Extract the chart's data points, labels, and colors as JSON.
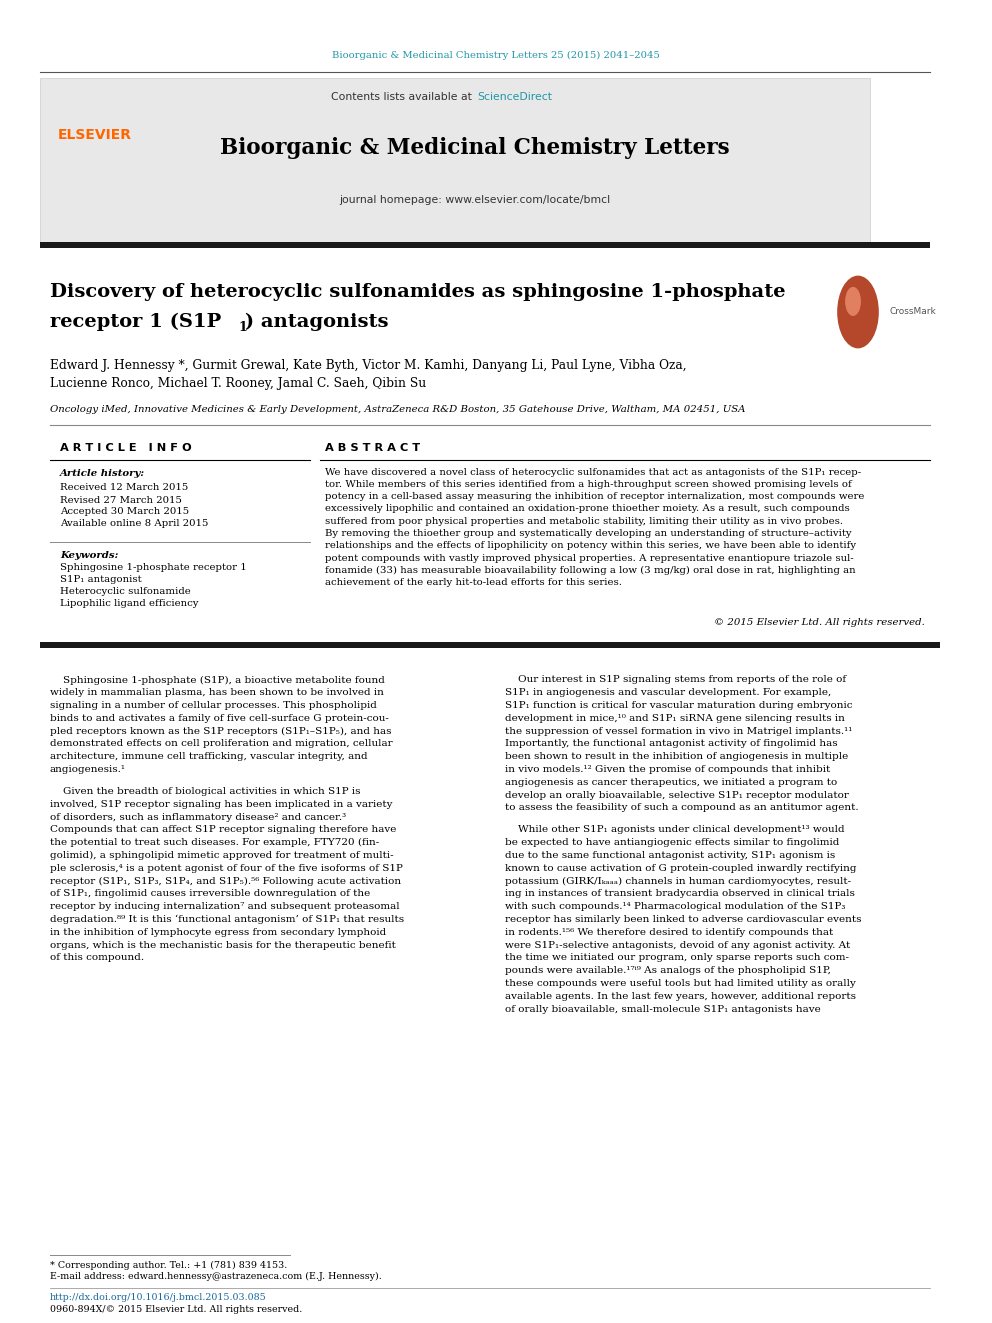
{
  "page_width": 9.92,
  "page_height": 13.23,
  "bg_color": "#ffffff",
  "top_journal_ref": "Bioorganic & Medicinal Chemistry Letters 25 (2015) 2041–2045",
  "top_journal_ref_color": "#2196a8",
  "header_bg_color": "#e8e8e8",
  "contents_text": "Contents lists available at ",
  "science_direct_text": "ScienceDirect",
  "science_direct_color": "#2196a8",
  "journal_title": "Bioorganic & Medicinal Chemistry Letters",
  "journal_homepage": "journal homepage: www.elsevier.com/locate/bmcl",
  "elsevier_color": "#ff6600",
  "thick_bar_color": "#1a1a1a",
  "article_title_line1": "Discovery of heterocyclic sulfonamides as sphingosine 1-phosphate",
  "article_title_line2": "receptor 1 (S1P",
  "article_title_line2b": ") antagonists",
  "article_title_color": "#000000",
  "authors": "Edward J. Hennessy *, Gurmit Grewal, Kate Byth, Victor M. Kamhi, Danyang Li, Paul Lyne, Vibha Oza,",
  "authors2": "Lucienne Ronco, Michael T. Rooney, Jamal C. Saeh, Qibin Su",
  "affiliation": "Oncology iMed, Innovative Medicines & Early Development, AstraZeneca R&D Boston, 35 Gatehouse Drive, Waltham, MA 02451, USA",
  "article_info_header": "A R T I C L E   I N F O",
  "abstract_header": "A B S T R A C T",
  "article_history_label": "Article history:",
  "received": "Received 12 March 2015",
  "revised": "Revised 27 March 2015",
  "accepted": "Accepted 30 March 2015",
  "available": "Available online 8 April 2015",
  "keywords_label": "Keywords:",
  "keyword1": "Sphingosine 1-phosphate receptor 1",
  "keyword2": "S1P₁ antagonist",
  "keyword3": "Heterocyclic sulfonamide",
  "keyword4": "Lipophilic ligand efficiency",
  "copyright": "© 2015 Elsevier Ltd. All rights reserved.",
  "footnote_star": "* Corresponding author. Tel.: +1 (781) 839 4153.",
  "footnote_email": "E-mail address: edward.hennessy@astrazeneca.com (E.J. Hennessy).",
  "footnote_doi": "http://dx.doi.org/10.1016/j.bmcl.2015.03.085",
  "footnote_issn": "0960-894X/© 2015 Elsevier Ltd. All rights reserved.",
  "abstract_lines": [
    "We have discovered a novel class of heterocyclic sulfonamides that act as antagonists of the S1P₁ recep-",
    "tor. While members of this series identified from a high-throughput screen showed promising levels of",
    "potency in a cell-based assay measuring the inhibition of receptor internalization, most compounds were",
    "excessively lipophilic and contained an oxidation-prone thioether moiety. As a result, such compounds",
    "suffered from poor physical properties and metabolic stability, limiting their utility as in vivo probes.",
    "By removing the thioether group and systematically developing an understanding of structure–activity",
    "relationships and the effects of lipophilicity on potency within this series, we have been able to identify",
    "potent compounds with vastly improved physical properties. A representative enantiopure triazole sul-",
    "fonamide (33) has measurable bioavailability following a low (3 mg/kg) oral dose in rat, highlighting an",
    "achievement of the early hit-to-lead efforts for this series."
  ],
  "body_left_p1": [
    "    Sphingosine 1-phosphate (S1P), a bioactive metabolite found",
    "widely in mammalian plasma, has been shown to be involved in",
    "signaling in a number of cellular processes. This phospholipid",
    "binds to and activates a family of five cell-surface G protein-cou-",
    "pled receptors known as the S1P receptors (S1P₁–S1P₅), and has",
    "demonstrated effects on cell proliferation and migration, cellular",
    "architecture, immune cell trafficking, vascular integrity, and",
    "angiogenesis.¹"
  ],
  "body_left_p2": [
    "    Given the breadth of biological activities in which S1P is",
    "involved, S1P receptor signaling has been implicated in a variety",
    "of disorders, such as inflammatory disease² and cancer.³",
    "Compounds that can affect S1P receptor signaling therefore have",
    "the potential to treat such diseases. For example, FTY720 (fin-",
    "golimid), a sphingolipid mimetic approved for treatment of multi-",
    "ple sclerosis,⁴ is a potent agonist of four of the five isoforms of S1P",
    "receptor (S1P₁, S1P₃, S1P₄, and S1P₅).⁵⁶ Following acute activation",
    "of S1P₁, fingolimid causes irreversible downregulation of the",
    "receptor by inducing internalization⁷ and subsequent proteasomal",
    "degradation.⁸⁹ It is this ‘functional antagonism’ of S1P₁ that results",
    "in the inhibition of lymphocyte egress from secondary lymphoid",
    "organs, which is the mechanistic basis for the therapeutic benefit",
    "of this compound."
  ],
  "body_right_p1": [
    "    Our interest in S1P signaling stems from reports of the role of",
    "S1P₁ in angiogenesis and vascular development. For example,",
    "S1P₁ function is critical for vascular maturation during embryonic",
    "development in mice,¹⁰ and S1P₁ siRNA gene silencing results in",
    "the suppression of vessel formation in vivo in Matrigel implants.¹¹",
    "Importantly, the functional antagonist activity of fingolimid has",
    "been shown to result in the inhibition of angiogenesis in multiple",
    "in vivo models.¹² Given the promise of compounds that inhibit",
    "angiogenesis as cancer therapeutics, we initiated a program to",
    "develop an orally bioavailable, selective S1P₁ receptor modulator",
    "to assess the feasibility of such a compound as an antitumor agent."
  ],
  "body_right_p2": [
    "    While other S1P₁ agonists under clinical development¹³ would",
    "be expected to have antiangiogenic effects similar to fingolimid",
    "due to the same functional antagonist activity, S1P₁ agonism is",
    "known to cause activation of G protein-coupled inwardly rectifying",
    "potassium (GIRK/Iₖₐₐₐ) channels in human cardiomyocytes, result-",
    "ing in instances of transient bradycardia observed in clinical trials",
    "with such compounds.¹⁴ Pharmacological modulation of the S1P₃",
    "receptor has similarly been linked to adverse cardiovascular events",
    "in rodents.¹⁵⁶ We therefore desired to identify compounds that",
    "were S1P₁-selective antagonists, devoid of any agonist activity. At",
    "the time we initiated our program, only sparse reports such com-",
    "pounds were available.¹⁷ⁱ⁹ As analogs of the phospholipid S1P,",
    "these compounds were useful tools but had limited utility as orally",
    "available agents. In the last few years, however, additional reports",
    "of orally bioavailable, small-molecule S1P₁ antagonists have"
  ]
}
